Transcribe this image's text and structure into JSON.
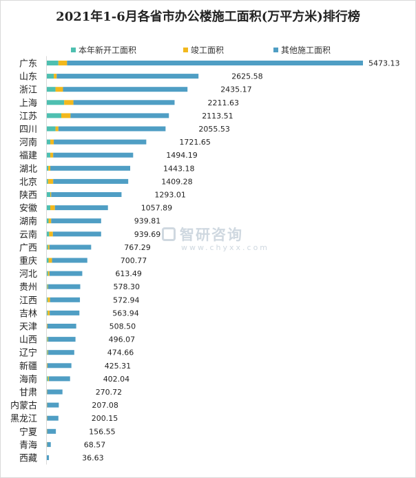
{
  "chart_data": {
    "type": "bar",
    "orientation": "horizontal",
    "stacked": true,
    "title": "2021年1-6月各省市办公楼施工面积(万平方米)排行榜",
    "xlabel": "",
    "ylabel": "",
    "unit": "万平方米",
    "categories": [
      "广东",
      "山东",
      "浙江",
      "上海",
      "江苏",
      "四川",
      "河南",
      "福建",
      "湖北",
      "北京",
      "陕西",
      "安徽",
      "湖南",
      "云南",
      "广西",
      "重庆",
      "河北",
      "贵州",
      "江西",
      "吉林",
      "天津",
      "山西",
      "辽宁",
      "新疆",
      "海南",
      "甘肃",
      "内蒙古",
      "黑龙江",
      "宁夏",
      "青海",
      "西藏"
    ],
    "totals": [
      "5473.13",
      "2625.58",
      "2435.17",
      "2211.63",
      "2113.51",
      "2055.53",
      "1721.65",
      "1494.19",
      "1443.18",
      "1409.28",
      "1293.01",
      "1057.89",
      "939.81",
      "939.69",
      "767.29",
      "700.77",
      "613.49",
      "578.30",
      "572.94",
      "563.94",
      "508.50",
      "496.07",
      "474.66",
      "425.31",
      "402.04",
      "270.72",
      "207.08",
      "200.15",
      "156.55",
      "68.57",
      "36.63"
    ],
    "series": [
      {
        "name": "本年新开工面积",
        "color": "#4ebfb0",
        "values": [
          200,
          120,
          150,
          300,
          250,
          150,
          60,
          60,
          25,
          20,
          60,
          60,
          30,
          40,
          20,
          30,
          20,
          10,
          15,
          15,
          0,
          10,
          10,
          0,
          20,
          0,
          0,
          0,
          0,
          0,
          0
        ]
      },
      {
        "name": "竣工面积",
        "color": "#f2b81d",
        "values": [
          150,
          50,
          130,
          160,
          160,
          50,
          60,
          50,
          35,
          90,
          15,
          80,
          45,
          65,
          25,
          60,
          25,
          10,
          40,
          35,
          10,
          10,
          10,
          10,
          15,
          5,
          5,
          5,
          5,
          5,
          0
        ]
      },
      {
        "name": "其他施工面积",
        "color": "#4f9ec4",
        "values": [
          5123.13,
          2455.58,
          2155.17,
          1751.63,
          1703.51,
          1855.53,
          1601.65,
          1384.19,
          1383.18,
          1299.28,
          1218.01,
          917.89,
          864.81,
          834.69,
          722.29,
          610.77,
          568.49,
          558.3,
          517.94,
          513.94,
          498.5,
          476.07,
          454.66,
          415.31,
          367.04,
          265.72,
          202.08,
          195.15,
          151.55,
          63.57,
          36.63
        ]
      }
    ],
    "xlim": [
      0,
      5500
    ],
    "grid": false,
    "legend_position": "top"
  },
  "watermark": {
    "name": "智研咨询",
    "url": "www.chyxx.com"
  }
}
